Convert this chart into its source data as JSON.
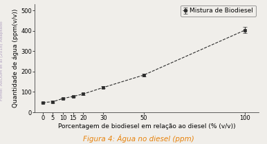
{
  "x": [
    0,
    5,
    10,
    15,
    20,
    30,
    50,
    100
  ],
  "y": [
    48,
    52,
    68,
    78,
    90,
    122,
    183,
    403
  ],
  "yerr": [
    4,
    4,
    4,
    4,
    4,
    5,
    6,
    15
  ],
  "xlabel": "Porcentagem de biodiesel em relação ao diesel (% (v/v))",
  "ylabel": "Quantidade de água (ppm(v/v))",
  "caption": "Figura 4: Água no diesel (ppm)",
  "legend_label": "Mistura de Biodiesel",
  "xticks": [
    0,
    5,
    10,
    15,
    20,
    30,
    50,
    100
  ],
  "yticks": [
    0,
    100,
    200,
    300,
    400,
    500
  ],
  "ylim": [
    0,
    530
  ],
  "xlim": [
    -4,
    107
  ],
  "marker_color": "#2b2b2b",
  "line_color": "#888888",
  "marker": "s",
  "marker_size": 3.5,
  "line_style": "--",
  "line_width": 0.8,
  "bg_color": "#f0eeea",
  "side_text": "Fonte: AROUM et al (2018) Adaptado",
  "caption_color": "#e8820a",
  "caption_fontsize": 7.5,
  "axis_label_fontsize": 6.5,
  "tick_fontsize": 6,
  "legend_fontsize": 6.5,
  "side_text_fontsize": 4.5,
  "side_text_color": "#b0a0c0"
}
